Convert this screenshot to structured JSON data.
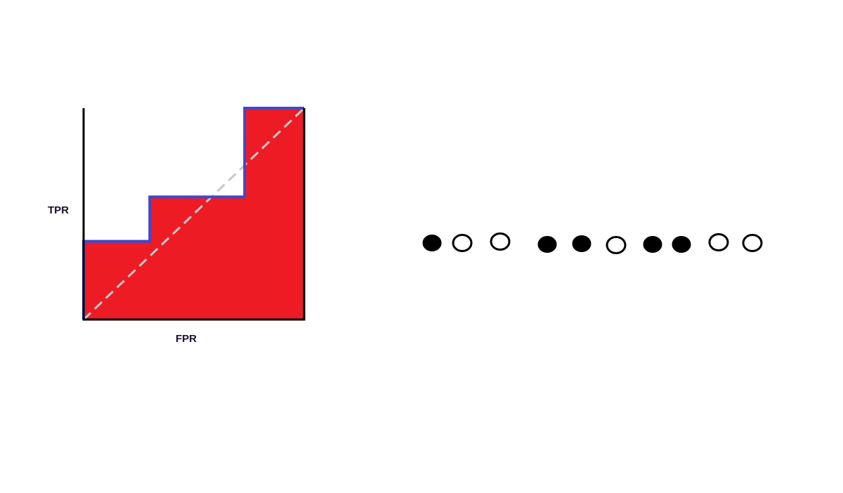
{
  "colors": {
    "fill": "#ed1c24",
    "curve": "#3f48cc",
    "diagonal": "#c8c8c8",
    "axis": "#000000",
    "label": "#1a0f2e",
    "dot_filled": "#000000",
    "dot_outline": "#000000"
  },
  "chart_data": [
    {
      "type": "area",
      "title": "",
      "xlabel": "FPR",
      "ylabel": "TPR",
      "xlim": [
        0,
        1
      ],
      "ylim": [
        0,
        1
      ],
      "grid": false,
      "legend": "none",
      "series": [
        {
          "x": [
            0,
            0,
            0.3,
            0.3,
            0.73,
            0.73,
            1
          ],
          "values": [
            0,
            0.37,
            0.37,
            0.58,
            0.58,
            1,
            1
          ]
        }
      ],
      "reference_line": {
        "x": [
          0,
          1
        ],
        "values": [
          0,
          1
        ]
      }
    },
    {
      "type": "scatter",
      "title": "",
      "points": [
        {
          "x": 1,
          "filled": true
        },
        {
          "x": 2,
          "filled": false
        },
        {
          "x": 3,
          "filled": false
        },
        {
          "x": 4,
          "filled": true
        },
        {
          "x": 5,
          "filled": true
        },
        {
          "x": 6,
          "filled": false
        },
        {
          "x": 7,
          "filled": true
        },
        {
          "x": 8,
          "filled": true
        },
        {
          "x": 9,
          "filled": false
        },
        {
          "x": 10,
          "filled": false
        }
      ]
    }
  ]
}
